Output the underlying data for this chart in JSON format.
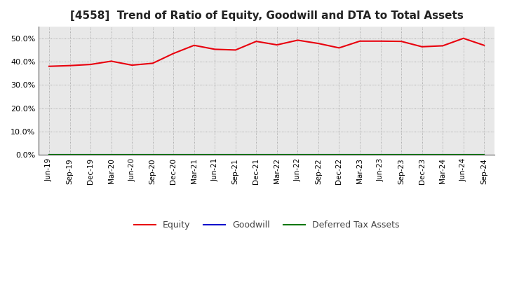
{
  "title": "[4558]  Trend of Ratio of Equity, Goodwill and DTA to Total Assets",
  "x_labels": [
    "Jun-19",
    "Sep-19",
    "Dec-19",
    "Mar-20",
    "Jun-20",
    "Sep-20",
    "Dec-20",
    "Mar-21",
    "Jun-21",
    "Sep-21",
    "Dec-21",
    "Mar-22",
    "Jun-22",
    "Sep-22",
    "Dec-22",
    "Mar-23",
    "Jun-23",
    "Sep-23",
    "Dec-23",
    "Mar-24",
    "Jun-24",
    "Sep-24"
  ],
  "equity": [
    38.0,
    38.3,
    38.8,
    40.2,
    38.5,
    39.3,
    43.5,
    47.0,
    45.3,
    45.0,
    48.7,
    47.2,
    49.2,
    47.8,
    45.9,
    48.8,
    48.8,
    48.7,
    46.4,
    46.8,
    50.0,
    47.0
  ],
  "goodwill": [
    0,
    0,
    0,
    0,
    0,
    0,
    0,
    0,
    0,
    0,
    0,
    0,
    0,
    0,
    0,
    0,
    0,
    0,
    0,
    0,
    0,
    0
  ],
  "dta": [
    0,
    0,
    0,
    0,
    0,
    0,
    0,
    0,
    0,
    0,
    0,
    0,
    0,
    0,
    0,
    0,
    0,
    0,
    0,
    0,
    0,
    0
  ],
  "equity_color": "#e8000d",
  "goodwill_color": "#0000cc",
  "dta_color": "#007700",
  "ylim": [
    0,
    55
  ],
  "yticks": [
    0,
    10,
    20,
    30,
    40,
    50
  ],
  "background_color": "#ffffff",
  "plot_bg_color": "#e8e8e8",
  "grid_color": "#999999",
  "title_fontsize": 11,
  "legend_labels": [
    "Equity",
    "Goodwill",
    "Deferred Tax Assets"
  ]
}
